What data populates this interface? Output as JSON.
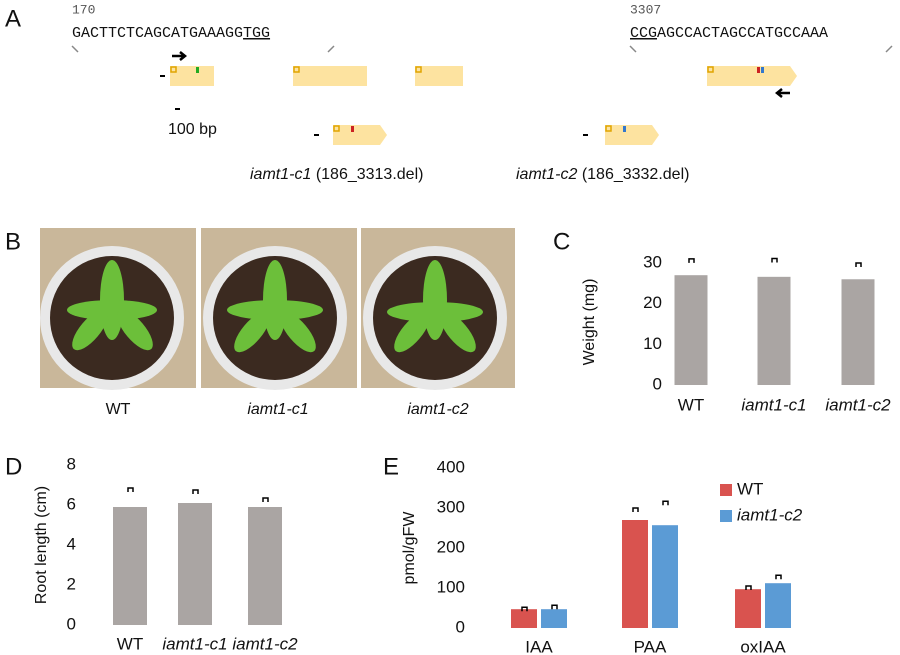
{
  "panels": [
    "A",
    "B",
    "C",
    "D",
    "E"
  ],
  "gene": {
    "pos_left": "170",
    "seq_left": "GACTTCTCAGCATGAAAGG",
    "pam_left": "TGG",
    "pos_right": "3307",
    "pam_right": "CCG",
    "seq_right": "AGCCACTAGCCATGCCAAA",
    "scale": "100 bp",
    "alleles": [
      {
        "name": "iamt1-c1",
        "note": "(186_3313.del)"
      },
      {
        "name": "iamt1-c2",
        "note": "(186_3332.del)"
      }
    ]
  },
  "photos": [
    "WT",
    "iamt1-c1",
    "iamt1-c2"
  ],
  "chart_data": [
    {
      "type": "bar",
      "ylabel": "Weight (mg)",
      "categories": [
        "WT",
        "iamt1-c1",
        "iamt1-c2"
      ],
      "values": [
        27,
        26.6,
        26
      ],
      "errors": [
        4,
        4.5,
        4
      ],
      "color": "#aaa5a3",
      "ylim": [
        0,
        30
      ],
      "yticks": [
        0,
        10,
        20,
        30
      ]
    },
    {
      "type": "bar",
      "ylabel": "Root length (cm)",
      "categories": [
        "WT",
        "iamt1-c1",
        "iamt1-c2"
      ],
      "values": [
        5.9,
        6.1,
        5.9
      ],
      "errors": [
        0.95,
        0.65,
        0.45
      ],
      "color": "#aaa5a3",
      "ylim": [
        0,
        8
      ],
      "yticks": [
        0,
        2,
        4,
        6,
        8
      ]
    },
    {
      "type": "grouped_bar",
      "ylabel": "pmol/gFW",
      "categories": [
        "IAA",
        "PAA",
        "oxIAA"
      ],
      "series": [
        {
          "name": "WT",
          "color": "#d9534f",
          "values": [
            47,
            270,
            97
          ],
          "errors": [
            5,
            30,
            8
          ]
        },
        {
          "name": "iamt1-c2",
          "color": "#5b9bd5",
          "values": [
            47,
            257,
            112
          ],
          "errors": [
            10,
            60,
            20
          ]
        }
      ],
      "ylim": [
        0,
        400
      ],
      "yticks": [
        0,
        100,
        200,
        300,
        400
      ]
    }
  ]
}
